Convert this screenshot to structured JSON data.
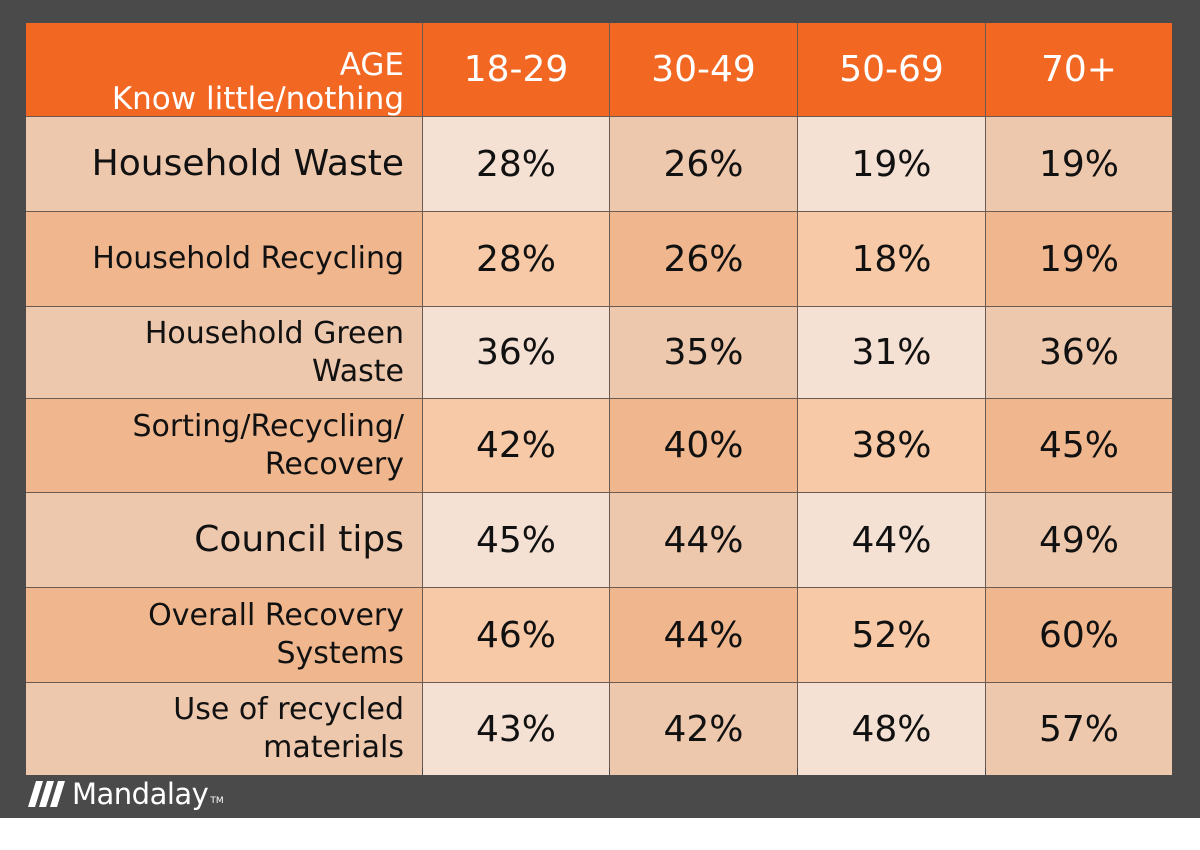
{
  "chart_data": {
    "type": "table",
    "corner": [
      "AGE",
      "Know little/nothing"
    ],
    "columns": [
      "18-29",
      "30-49",
      "50-69",
      "70+"
    ],
    "rows": [
      {
        "label": "Household Waste",
        "values": [
          "28%",
          "26%",
          "19%",
          "19%"
        ]
      },
      {
        "label": "Household Recycling",
        "values": [
          "28%",
          "26%",
          "18%",
          "19%"
        ]
      },
      {
        "label": "Household Green Waste",
        "values": [
          "36%",
          "35%",
          "31%",
          "36%"
        ]
      },
      {
        "label": "Sorting/Recycling/ Recovery",
        "values": [
          "42%",
          "40%",
          "38%",
          "45%"
        ]
      },
      {
        "label": "Council tips",
        "values": [
          "45%",
          "44%",
          "44%",
          "49%"
        ]
      },
      {
        "label": "Overall Recovery Systems",
        "values": [
          "46%",
          "44%",
          "52%",
          "60%"
        ]
      },
      {
        "label": "Use of recycled materials",
        "values": [
          "43%",
          "42%",
          "48%",
          "57%"
        ]
      }
    ]
  },
  "branding": {
    "logo_text": "Mandalay",
    "tm": "TM"
  },
  "colors": {
    "header": "#f26722",
    "frame": "#4a4a4a",
    "cell_light": "#f5e1d3",
    "cell_mid": "#eec8ad",
    "cell_peach": "#f7c9a6",
    "cell_dark": "#f0b78f"
  }
}
